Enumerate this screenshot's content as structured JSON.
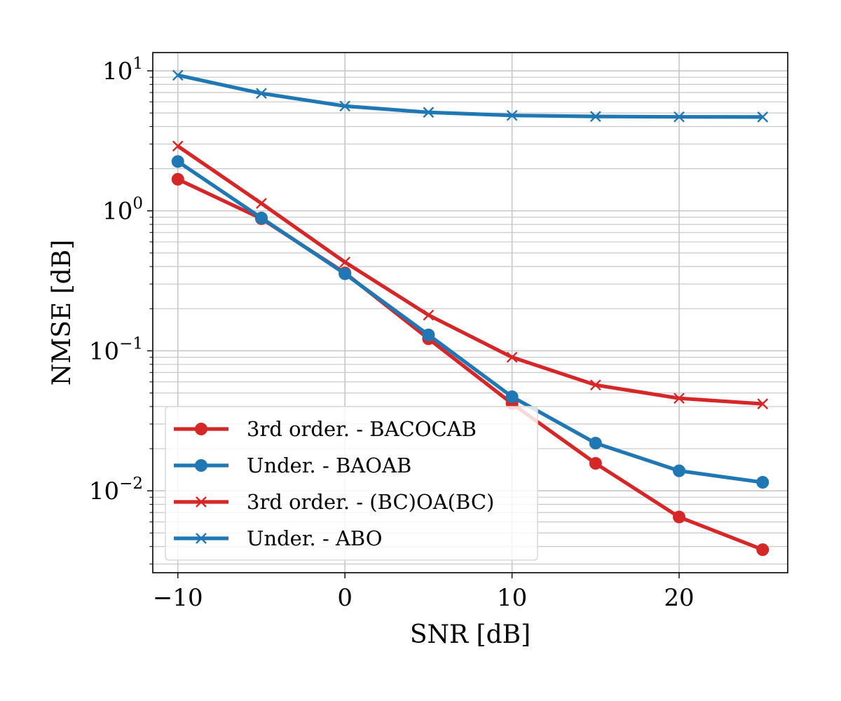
{
  "chart_data": {
    "type": "line",
    "xlabel": "SNR [dB]",
    "ylabel": "NMSE [dB]",
    "x": [
      -10,
      -5,
      0,
      5,
      10,
      15,
      20,
      25
    ],
    "xlim": [
      -11.5,
      26.5
    ],
    "ylim": [
      0.0026,
      13.5
    ],
    "yscale": "log",
    "grid": true,
    "legend_position": "lower-left",
    "x_ticks": [
      {
        "value": -10,
        "label": "−10"
      },
      {
        "value": 0,
        "label": "0"
      },
      {
        "value": 10,
        "label": "10"
      },
      {
        "value": 20,
        "label": "20"
      }
    ],
    "y_ticks": [
      {
        "value": 0.01,
        "base": "10",
        "exp": "−2"
      },
      {
        "value": 0.1,
        "base": "10",
        "exp": "−1"
      },
      {
        "value": 1,
        "base": "10",
        "exp": "0"
      },
      {
        "value": 10,
        "base": "10",
        "exp": "1"
      }
    ],
    "series": [
      {
        "name": "3rd order. - BACOCAB",
        "color": "#d62728",
        "marker": "circle",
        "values": [
          1.68,
          0.88,
          0.36,
          0.122,
          0.042,
          0.0157,
          0.0065,
          0.0038
        ]
      },
      {
        "name": "Under. - BAOAB",
        "color": "#1f77b4",
        "marker": "circle",
        "values": [
          2.25,
          0.89,
          0.355,
          0.13,
          0.047,
          0.0219,
          0.0139,
          0.0115
        ]
      },
      {
        "name": "3rd order. - (BC)OA(BC)",
        "color": "#d62728",
        "marker": "x",
        "values": [
          2.9,
          1.13,
          0.43,
          0.18,
          0.09,
          0.057,
          0.0458,
          0.0418
        ]
      },
      {
        "name": "Under. - ABO",
        "color": "#1f77b4",
        "marker": "x",
        "values": [
          9.3,
          6.9,
          5.6,
          5.05,
          4.8,
          4.72,
          4.69,
          4.68
        ]
      }
    ]
  }
}
